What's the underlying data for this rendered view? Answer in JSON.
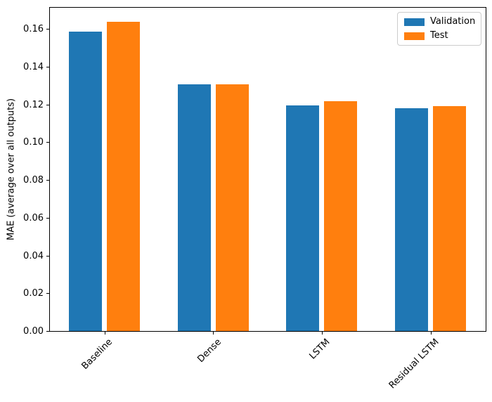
{
  "chart_data": {
    "type": "bar",
    "title": "",
    "xlabel": "",
    "ylabel": "MAE (average over all outputs)",
    "categories": [
      "Baseline",
      "Dense",
      "LSTM",
      "Residual LSTM"
    ],
    "series": [
      {
        "name": "Validation",
        "color": "#1f77b4",
        "values": [
          0.159,
          0.131,
          0.12,
          0.1185
        ]
      },
      {
        "name": "Test",
        "color": "#ff7f0e",
        "values": [
          0.164,
          0.131,
          0.122,
          0.1195
        ]
      }
    ],
    "ylim": [
      0,
      0.172
    ],
    "yticks": [
      0.0,
      0.02,
      0.04,
      0.06,
      0.08,
      0.1,
      0.12,
      0.14,
      0.16
    ],
    "ytick_labels": [
      "0.00",
      "0.02",
      "0.04",
      "0.06",
      "0.08",
      "0.10",
      "0.12",
      "0.14",
      "0.16"
    ],
    "xtick_rotation_deg": 45,
    "grid": false,
    "legend_position": "upper right",
    "background_color": "#ffffff",
    "spine_color": "#000000"
  }
}
